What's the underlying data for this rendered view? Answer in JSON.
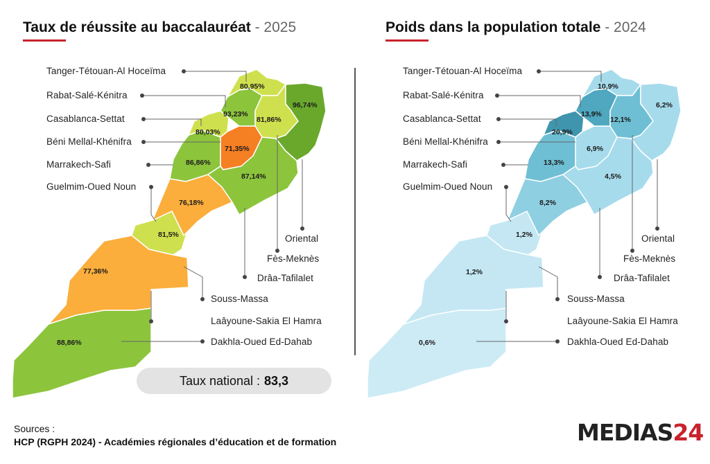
{
  "left_panel": {
    "title": "Taux de réussite au baccalauréat",
    "year": "- 2025",
    "values": {
      "tanger": "80,95%",
      "rabat": "93,23%",
      "oriental": "96,74%",
      "fes": "81,86%",
      "casa": "80,03%",
      "beni": "71,35%",
      "marrakech": "86,86%",
      "draa": "87,14%",
      "souss": "76,18%",
      "guelmim": "81,5%",
      "laayoune": "77,36%",
      "dakhla": "88,86%"
    },
    "national_label": "Taux national :",
    "national_value": "83,3"
  },
  "right_panel": {
    "title": "Poids dans la population totale",
    "year": "- 2024",
    "values": {
      "tanger": "10,9%",
      "rabat": "13,9%",
      "oriental": "6,2%",
      "fes": "12,1%",
      "casa": "20,9%",
      "beni": "6,9%",
      "marrakech": "13,3%",
      "draa": "4,5%",
      "souss": "8,2%",
      "guelmim": "1,2%",
      "laayoune": "1,2%",
      "dakhla": "0,6%"
    }
  },
  "regions": {
    "tanger": "Tanger-Tétouan-Al Hoceïma",
    "rabat": "Rabat-Salé-Kénitra",
    "casa": "Casablanca-Settat",
    "beni": "Béni Mellal-Khénifra",
    "marrakech": "Marrakech-Safi",
    "guelmim": "Guelmim-Oued Noun",
    "oriental": "Oriental",
    "fes": "Fès-Meknès",
    "draa": "Drâa-Tafilalet",
    "souss": "Souss-Massa",
    "laayoune": "Laâyoune-Sakia El Hamra",
    "dakhla": "Dakhla-Oued Ed-Dahab"
  },
  "colors": {
    "accent": "#c8232c",
    "left": {
      "tanger": "#cfe04f",
      "rabat": "#8cc43c",
      "oriental": "#6aa82c",
      "fes": "#cfe04f",
      "casa": "#cfe04f",
      "beni": "#f57f23",
      "marrakech": "#8cc43c",
      "draa": "#8cc43c",
      "souss": "#fbae3c",
      "guelmim": "#cfe04f",
      "laayoune": "#fbae3c",
      "dakhla": "#8cc43c"
    },
    "right": {
      "tanger": "#a6dbec",
      "rabat": "#4fa7c0",
      "oriental": "#a6dbec",
      "fes": "#6ebfd4",
      "casa": "#3f95ad",
      "beni": "#a6dbec",
      "marrakech": "#6ebfd4",
      "draa": "#a6dbec",
      "souss": "#8fcfe2",
      "guelmim": "#c4e7f3",
      "laayoune": "#c4e7f3",
      "dakhla": "#cdebf5"
    }
  },
  "sources": {
    "heading": "Sources :",
    "text": "HCP (RGPH 2024) - Académies régionales d’éducation et de formation"
  },
  "logo": {
    "text": "MEDIAS",
    "number": "24"
  }
}
